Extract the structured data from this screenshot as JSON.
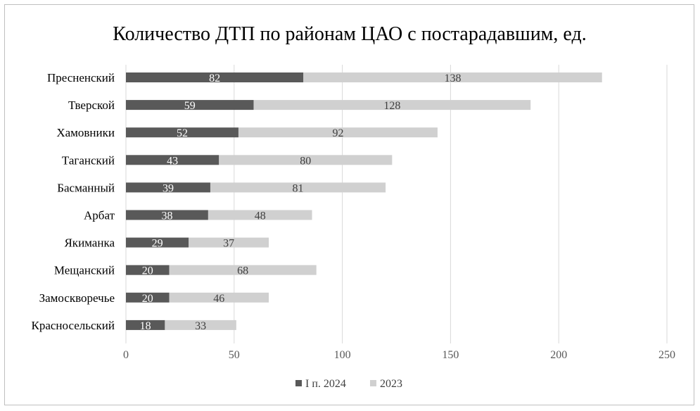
{
  "chart_data": {
    "type": "bar",
    "orientation": "horizontal",
    "stacked": true,
    "title": "Количество ДТП по районам ЦАО с постарадавшим, ед.",
    "categories": [
      "Пресненский",
      "Тверской",
      "Хамовники",
      "Таганский",
      "Басманный",
      "Арбат",
      "Якиманка",
      "Мещанский",
      "Замоскворечье",
      "Красносельский"
    ],
    "series": [
      {
        "name": "I п. 2024",
        "color": "#595959",
        "values": [
          82,
          59,
          52,
          43,
          39,
          38,
          29,
          20,
          20,
          18
        ]
      },
      {
        "name": "2023",
        "color": "#d0d0d0",
        "values": [
          138,
          128,
          92,
          80,
          81,
          48,
          37,
          68,
          46,
          33
        ]
      }
    ],
    "xlim": [
      0,
      250
    ],
    "xticks": [
      0,
      50,
      100,
      150,
      200,
      250
    ],
    "grid": "vertical",
    "legend_position": "bottom"
  }
}
